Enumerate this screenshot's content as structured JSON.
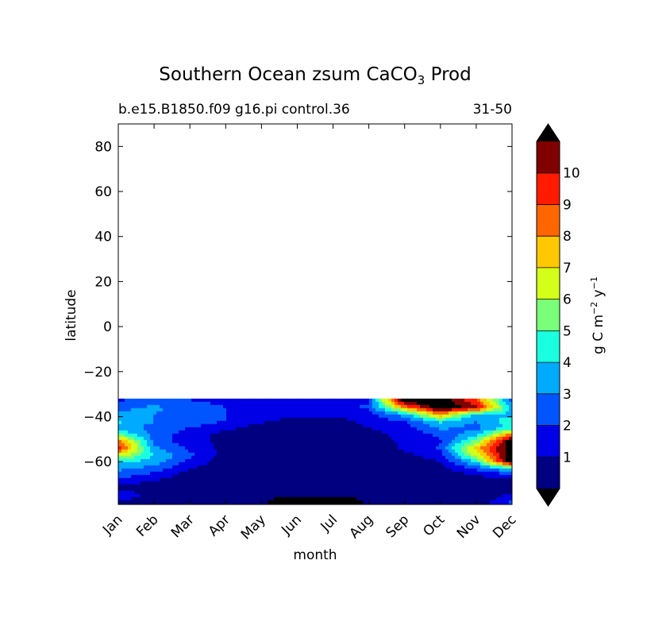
{
  "chart_data": {
    "type": "contour",
    "title": "Southern Ocean zsum CaCO",
    "title_subscript": "3",
    "title_suffix": " Prod",
    "subtitle_left": "b.e15.B1850.f09 g16.pi control.36",
    "subtitle_right": "31-50",
    "xlabel": "month",
    "ylabel": "latitude",
    "x_ticks": [
      "Jan",
      "Feb",
      "Mar",
      "Apr",
      "May",
      "Jun",
      "Jul",
      "Aug",
      "Sep",
      "Oct",
      "Nov",
      "Dec"
    ],
    "y_ticks": [
      80,
      60,
      40,
      20,
      0,
      -20,
      -40,
      -60
    ],
    "y_tick_labels": [
      "80",
      "60",
      "40",
      "20",
      "0",
      "−20",
      "−40",
      "−60"
    ],
    "ylim": [
      -79,
      90
    ],
    "xlim": [
      0,
      11
    ],
    "data_extent_lat": [
      -79,
      -32
    ],
    "colorbar": {
      "label_main": "g C m",
      "label_sup1": "−2",
      "label_mid": " y",
      "label_sup2": "−1",
      "levels": [
        0,
        1,
        2,
        3,
        4,
        5,
        6,
        7,
        8,
        9,
        10,
        11
      ],
      "tick_labels": [
        "1",
        "2",
        "3",
        "4",
        "5",
        "6",
        "7",
        "8",
        "9",
        "10"
      ],
      "extend": "both",
      "under_color": "#000000",
      "over_color": "#000000",
      "colors": [
        "#000080",
        "#0000e6",
        "#0055ff",
        "#00aaff",
        "#1affe0",
        "#79ff79",
        "#d4ff19",
        "#ffc800",
        "#ff6600",
        "#ff1a00",
        "#800000"
      ]
    },
    "z_grid": {
      "lats": [
        -33,
        -36,
        -39,
        -42,
        -45,
        -48,
        -51,
        -54,
        -57,
        -60,
        -63,
        -66,
        -69,
        -72,
        -75,
        -78
      ],
      "rows": [
        [
          1.9,
          2.6,
          2.0,
          1.7,
          1.6,
          1.4,
          1.6,
          1.9,
          12.0,
          12.0,
          9.0,
          2.5
        ],
        [
          2.6,
          3.2,
          2.6,
          2.0,
          1.6,
          1.6,
          1.6,
          2.2,
          8.0,
          12.0,
          10.5,
          3.6
        ],
        [
          3.6,
          3.0,
          2.6,
          2.0,
          1.8,
          1.3,
          1.2,
          1.6,
          3.6,
          8.0,
          3.8,
          3.8
        ],
        [
          4.2,
          3.0,
          2.6,
          2.0,
          1.2,
          0.5,
          0.6,
          1.3,
          2.0,
          4.2,
          3.0,
          4.6
        ],
        [
          3.6,
          2.6,
          2.0,
          1.3,
          0.5,
          0.3,
          0.3,
          1.0,
          1.5,
          3.2,
          2.6,
          4.4
        ],
        [
          5.2,
          2.6,
          1.5,
          0.6,
          0.3,
          0.2,
          0.2,
          0.6,
          1.4,
          2.2,
          3.6,
          8.5
        ],
        [
          8.5,
          2.6,
          1.5,
          0.6,
          0.3,
          0.2,
          0.2,
          0.4,
          1.2,
          1.9,
          5.5,
          12.0
        ],
        [
          9.5,
          3.2,
          1.8,
          0.6,
          0.2,
          0.2,
          0.2,
          0.3,
          1.2,
          2.1,
          7.5,
          12.0
        ],
        [
          6.8,
          4.0,
          2.2,
          0.6,
          0.2,
          0.2,
          0.2,
          0.3,
          0.8,
          1.5,
          6.5,
          12.0
        ],
        [
          4.2,
          3.6,
          1.7,
          0.4,
          0.2,
          0.2,
          0.2,
          0.3,
          0.5,
          1.0,
          4.2,
          12.0
        ],
        [
          3.2,
          2.6,
          1.1,
          0.3,
          0.2,
          0.2,
          0.2,
          0.2,
          0.3,
          0.6,
          2.2,
          4.2
        ],
        [
          2.6,
          1.6,
          0.5,
          0.2,
          0.2,
          0.2,
          0.2,
          0.2,
          0.2,
          0.3,
          1.0,
          1.6
        ],
        [
          1.3,
          0.9,
          0.3,
          0.2,
          0.2,
          0.2,
          0.2,
          0.2,
          0.2,
          0.2,
          0.5,
          0.7
        ],
        [
          0.8,
          0.5,
          0.2,
          0.2,
          0.2,
          0.2,
          0.2,
          0.2,
          0.2,
          0.2,
          0.2,
          0.4
        ],
        [
          1.8,
          0.5,
          0.2,
          0.2,
          0.2,
          0.2,
          0.2,
          0.2,
          0.2,
          0.2,
          0.2,
          1.3
        ],
        [
          0.8,
          0.3,
          0.2,
          0.2,
          0.2,
          -1.0,
          -1.0,
          0.2,
          0.2,
          0.2,
          0.2,
          2.2
        ]
      ]
    }
  }
}
